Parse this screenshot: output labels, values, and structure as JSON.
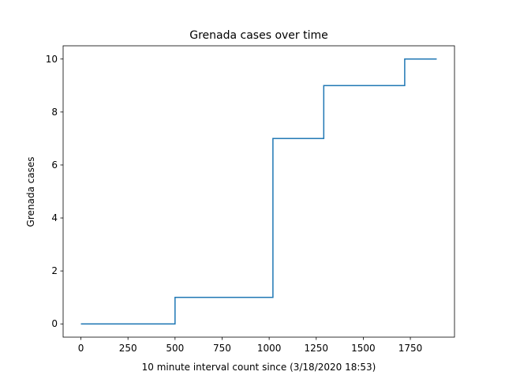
{
  "chart_data": {
    "type": "line",
    "drawstyle": "steps-post",
    "title": "Grenada cases over time",
    "xlabel": "10 minute interval count since (3/18/2020 18:53)",
    "ylabel": "Grenada cases",
    "xlim": [
      -94.5,
      1984.5
    ],
    "ylim": [
      -0.5,
      10.5
    ],
    "xticks": [
      0,
      250,
      500,
      750,
      1000,
      1250,
      1500,
      1750
    ],
    "yticks": [
      0,
      2,
      4,
      6,
      8,
      10
    ],
    "grid": false,
    "line_color": "#1f77b4",
    "series": [
      {
        "x": [
          0,
          500,
          1020,
          1290,
          1720,
          1890
        ],
        "y": [
          0,
          1,
          7,
          9,
          10,
          10
        ]
      }
    ]
  }
}
